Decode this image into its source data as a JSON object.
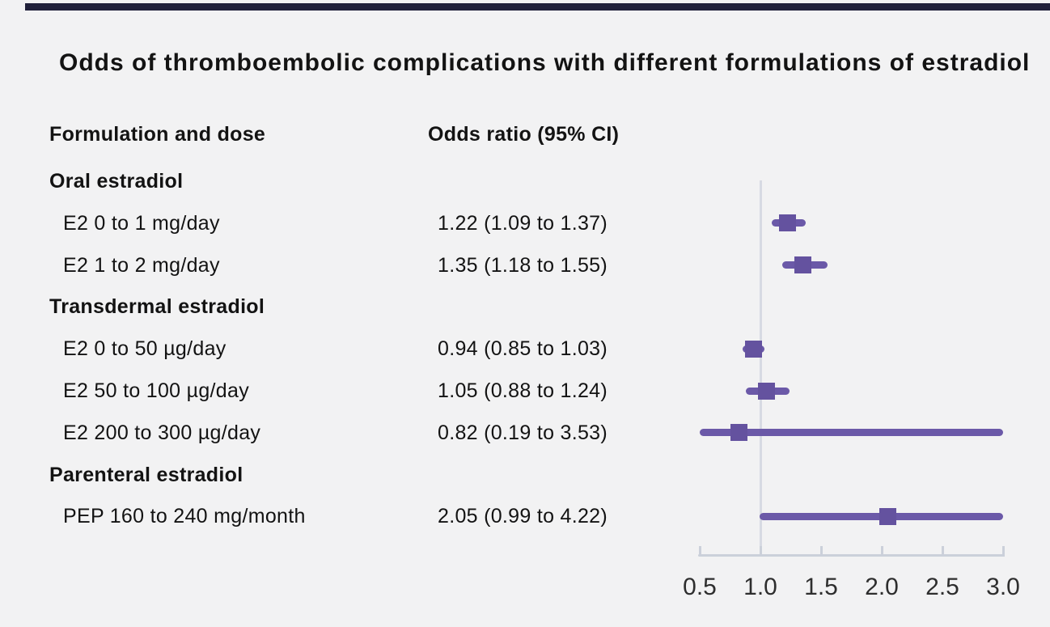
{
  "title": "Odds of thromboembolic complications with different formulations of estradiol",
  "columns": {
    "formulation": "Formulation and dose",
    "odds_ratio": "Odds ratio (95% CI)"
  },
  "chart_data": {
    "type": "forest",
    "title": "Odds of thromboembolic complications with different formulations of estradiol",
    "x_range": [
      0.5,
      3.0
    ],
    "reference_line": 1.0,
    "tick_labels": [
      "0.5",
      "1.0",
      "1.5",
      "2.0",
      "2.5",
      "3.0"
    ],
    "rows": [
      {
        "kind": "section",
        "label": "Oral estradiol"
      },
      {
        "kind": "item",
        "label": "E2 0 to 1 mg/day",
        "or_text": "1.22 (1.09 to 1.37)",
        "or": 1.22,
        "ci_low": 1.09,
        "ci_high": 1.37
      },
      {
        "kind": "item",
        "label": "E2 1 to 2 mg/day",
        "or_text": "1.35 (1.18 to 1.55)",
        "or": 1.35,
        "ci_low": 1.18,
        "ci_high": 1.55
      },
      {
        "kind": "section",
        "label": "Transdermal estradiol"
      },
      {
        "kind": "item",
        "label": "E2 0 to 50 µg/day",
        "or_text": "0.94 (0.85 to 1.03)",
        "or": 0.94,
        "ci_low": 0.85,
        "ci_high": 1.03
      },
      {
        "kind": "item",
        "label": "E2 50 to 100 µg/day",
        "or_text": "1.05 (0.88 to 1.24)",
        "or": 1.05,
        "ci_low": 0.88,
        "ci_high": 1.24
      },
      {
        "kind": "item",
        "label": "E2 200 to 300 µg/day",
        "or_text": "0.82 (0.19 to 3.53)",
        "or": 0.82,
        "ci_low": 0.19,
        "ci_high": 3.53
      },
      {
        "kind": "section",
        "label": "Parenteral estradiol"
      },
      {
        "kind": "item",
        "label": "PEP 160 to 240 mg/month",
        "or_text": "2.05 (0.99 to 4.22)",
        "or": 2.05,
        "ci_low": 0.99,
        "ci_high": 4.22
      }
    ]
  },
  "colors": {
    "background": "#F2F2F3",
    "top_bar": "#20203A",
    "ci_line": "#6B59A8",
    "marker": "#64529F",
    "axis": "#CBD0DA",
    "reference_line": "#D7DAE3",
    "text": "#131313",
    "tick_text": "#2E2E2E"
  }
}
